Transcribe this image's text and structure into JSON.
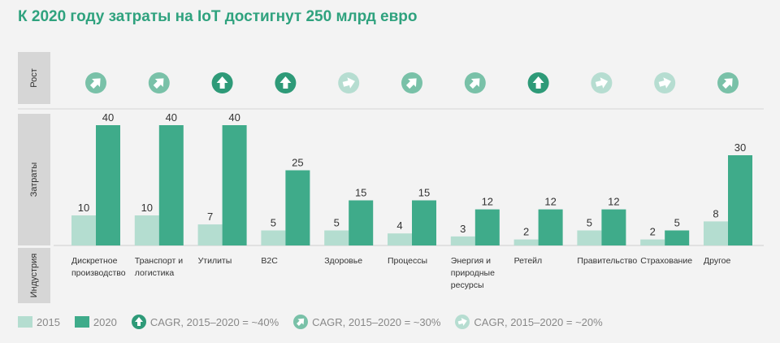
{
  "title": "К 2020 году затраты на IoT достигнут 250 млрд евро",
  "row_labels": {
    "growth": "Рост",
    "spend": "Затраты",
    "industry": "Индустрия"
  },
  "colors": {
    "2015": "#b4ddd0",
    "2020": "#3fab8a",
    "icon_high": "#2e9a78",
    "icon_mid": "#79c1a8",
    "icon_low": "#b6ddd1"
  },
  "legend": {
    "y2015": "2015",
    "y2020": "2020",
    "cagr40": "CAGR, 2015–2020 = ~40%",
    "cagr30": "CAGR, 2015–2020 = ~30%",
    "cagr20": "CAGR, 2015–2020 = ~20%"
  },
  "chart_data": {
    "type": "bar",
    "categories": [
      "Дискретное производство",
      "Транспорт и логистика",
      "Утилиты",
      "B2C",
      "Здоровье",
      "Процессы",
      "Энергия и природные ресурсы",
      "Ретейл",
      "Правительство",
      "Страхование",
      "Другое"
    ],
    "series": [
      {
        "name": "2015",
        "values": [
          10,
          10,
          7,
          5,
          5,
          4,
          3,
          2,
          5,
          2,
          8
        ]
      },
      {
        "name": "2020",
        "values": [
          40,
          40,
          40,
          25,
          15,
          15,
          12,
          12,
          12,
          5,
          30
        ]
      }
    ],
    "growth": [
      "~30%",
      "~30%",
      "~40%",
      "~40%",
      "~20%",
      "~30%",
      "~30%",
      "~40%",
      "~20%",
      "~20%",
      "~30%"
    ],
    "ylim": [
      0,
      40
    ]
  }
}
